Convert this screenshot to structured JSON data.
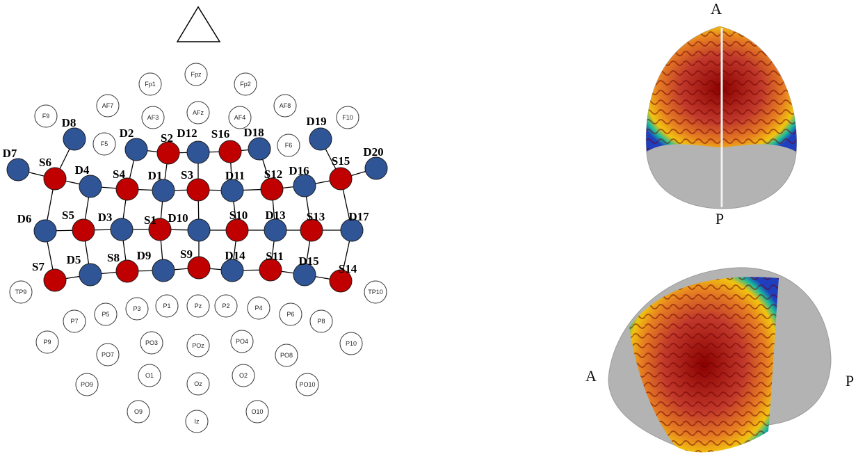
{
  "eeg_positions": [
    "Fp1",
    "Fpz",
    "Fp2",
    "AF7",
    "AF3",
    "AFz",
    "AF4",
    "AF8",
    "F9",
    "F5",
    "F6",
    "F10",
    "TP9",
    "TP10",
    "P7",
    "P5",
    "P3",
    "P1",
    "Pz",
    "P2",
    "P4",
    "P6",
    "P8",
    "P9",
    "PO7",
    "PO3",
    "POz",
    "PO4",
    "PO8",
    "P10",
    "PO9",
    "O1",
    "Oz",
    "O2",
    "PO10",
    "O9",
    "Iz",
    "O10"
  ],
  "sources": [
    "S1",
    "S2",
    "S3",
    "S4",
    "S5",
    "S6",
    "S7",
    "S8",
    "S9",
    "S10",
    "S11",
    "S12",
    "S13",
    "S14",
    "S15",
    "S16"
  ],
  "detectors": [
    "D1",
    "D2",
    "D3",
    "D4",
    "D5",
    "D6",
    "D7",
    "D8",
    "D9",
    "D10",
    "D11",
    "D12",
    "D13",
    "D14",
    "D15",
    "D16",
    "D17",
    "D18",
    "D19",
    "D20"
  ],
  "brain_views": {
    "top": {
      "anterior": "A",
      "posterior": "P"
    },
    "side": {
      "anterior": "A",
      "posterior": "P"
    }
  },
  "colors": {
    "source": "#c00000",
    "detector": "#2f5597",
    "link": "#000000",
    "brain": "#b3b3b3"
  }
}
